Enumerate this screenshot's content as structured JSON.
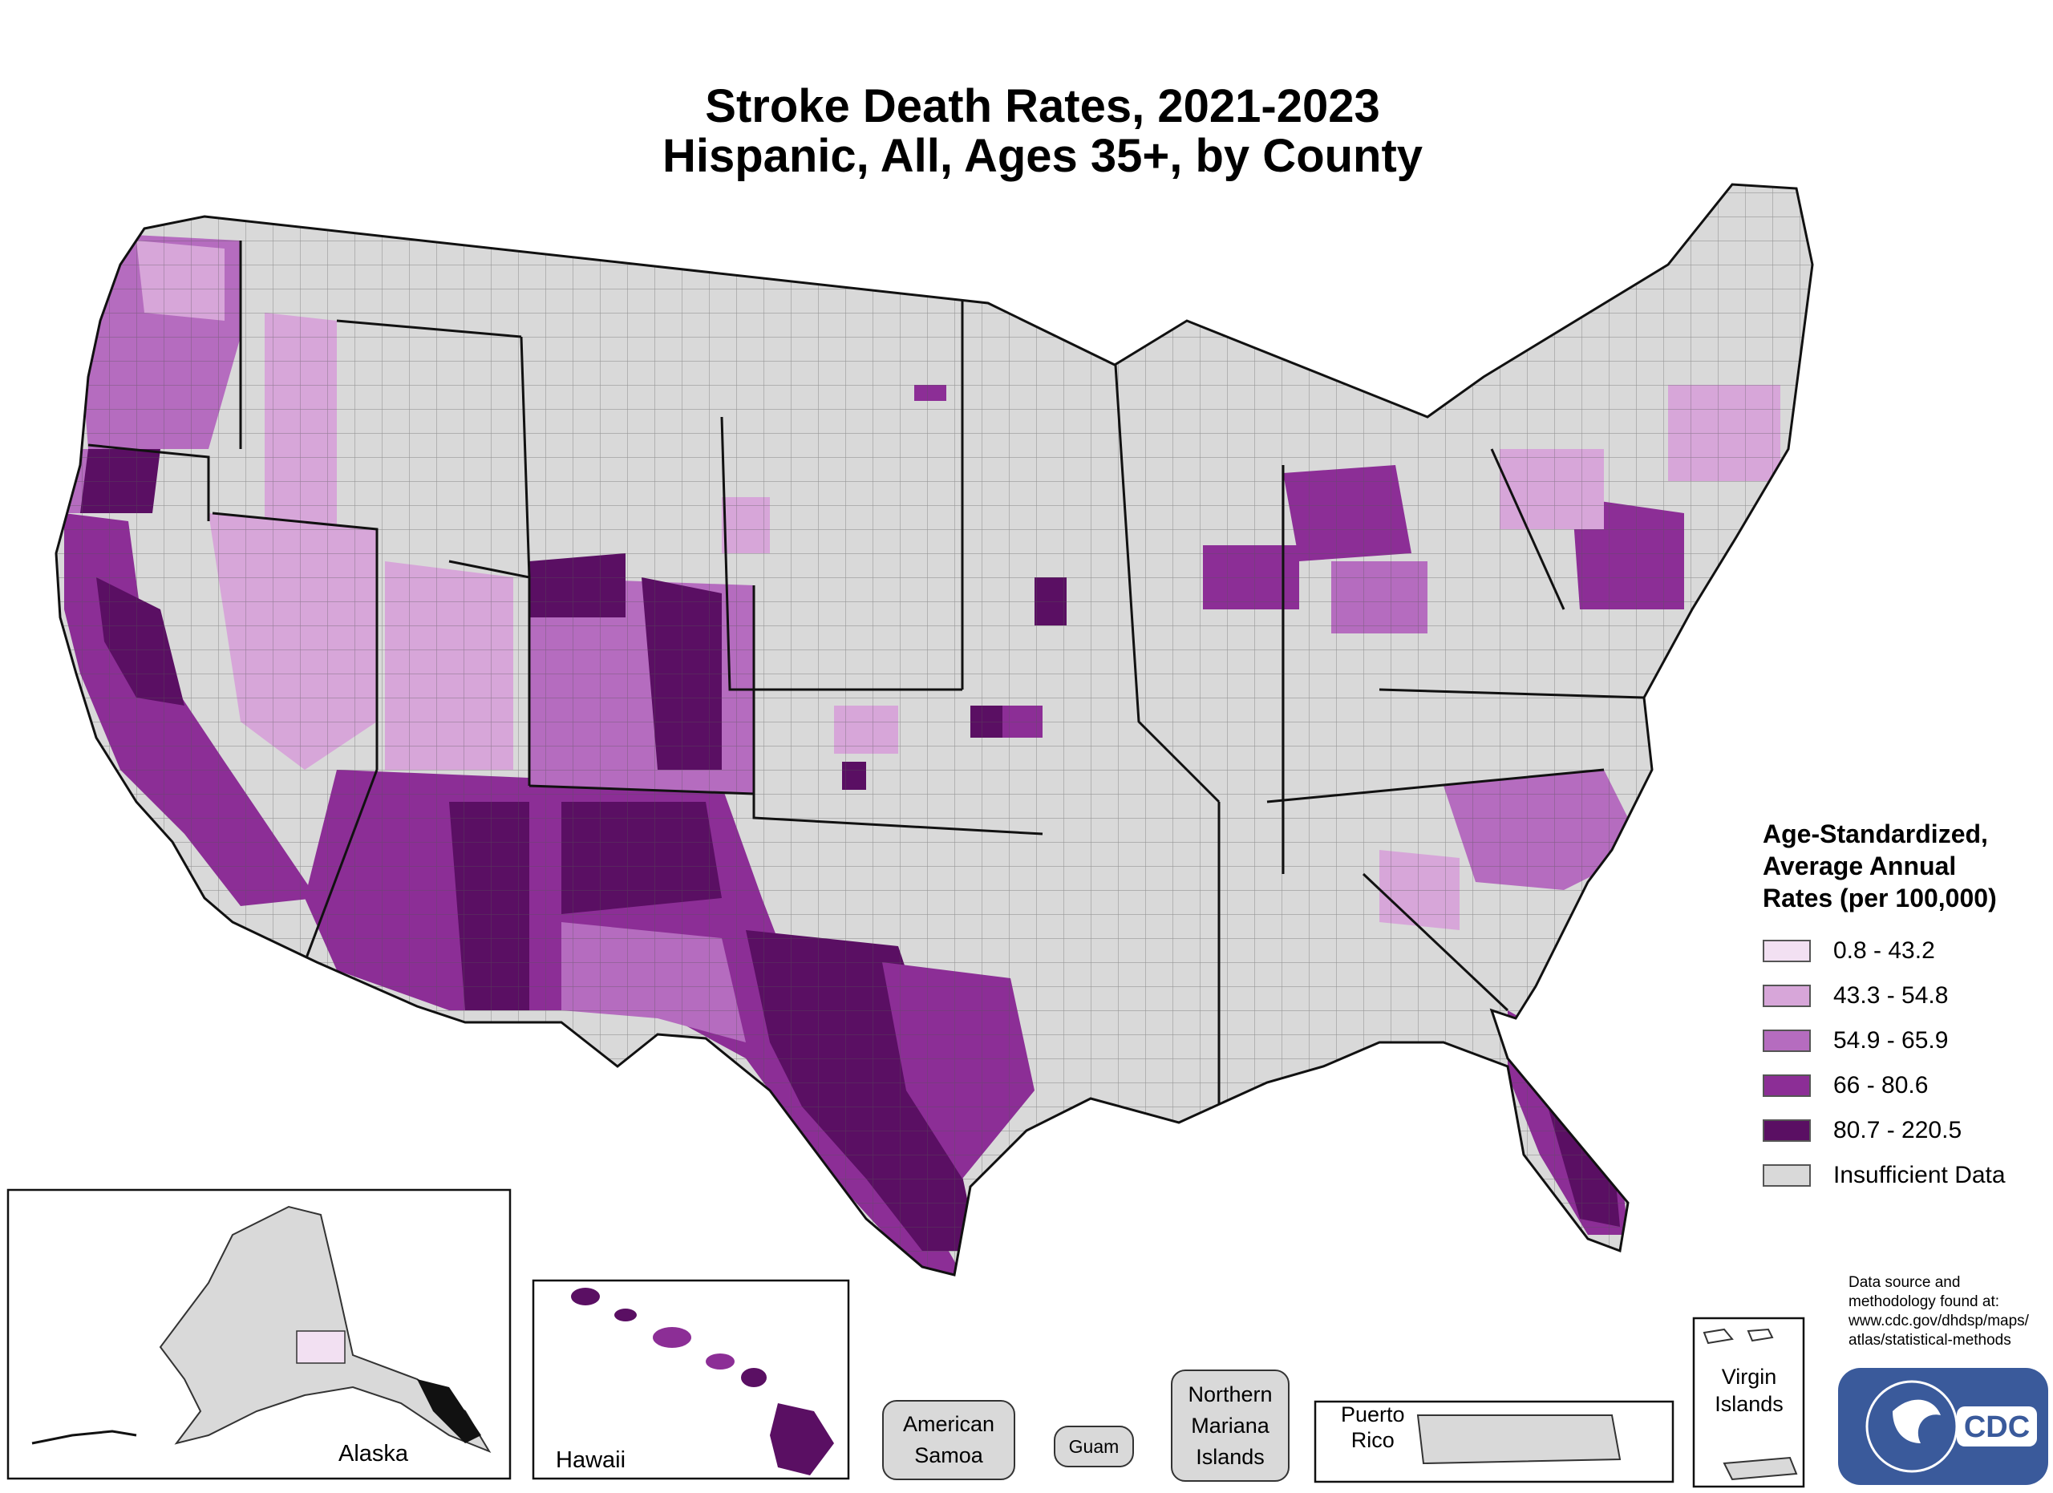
{
  "title": {
    "line1": "Stroke Death Rates, 2021-2023",
    "line2": "Hispanic, All, Ages 35+, by County"
  },
  "legend": {
    "title_line1": "Age-Standardized,",
    "title_line2": "Average Annual",
    "title_line3": "Rates (per 100,000)",
    "items": [
      {
        "label": "0.8 - 43.2",
        "color": "#f2e0f2"
      },
      {
        "label": "43.3 - 54.8",
        "color": "#d7a6d9"
      },
      {
        "label": "54.9 - 65.9",
        "color": "#b56cbf"
      },
      {
        "label": "66 - 80.6",
        "color": "#8c2e96"
      },
      {
        "label": "80.7 - 220.5",
        "color": "#5a0f63"
      },
      {
        "label": "Insufficient Data",
        "color": "#d9d9d9"
      }
    ]
  },
  "insets": {
    "alaska": "Alaska",
    "hawaii": "Hawaii",
    "puerto_rico_line1": "Puerto",
    "puerto_rico_line2": "Rico",
    "virgin_islands_line1": "Virgin",
    "virgin_islands_line2": "Islands"
  },
  "territories": {
    "american_samoa_line1": "American",
    "american_samoa_line2": "Samoa",
    "guam": "Guam",
    "northern_mariana_line1": "Northern",
    "northern_mariana_line2": "Mariana",
    "northern_mariana_line3": "Islands"
  },
  "source": {
    "line1": "Data source and",
    "line2": "methodology found at:",
    "line3": "www.cdc.gov/dhdsp/maps/",
    "line4": "atlas/statistical-methods"
  },
  "logo": {
    "text": "CDC",
    "icon": "hhs-eagle-icon"
  },
  "colors": {
    "insufficient": "#d9d9d9",
    "border": "#333333",
    "logo_blue": "#3a5a9b"
  }
}
